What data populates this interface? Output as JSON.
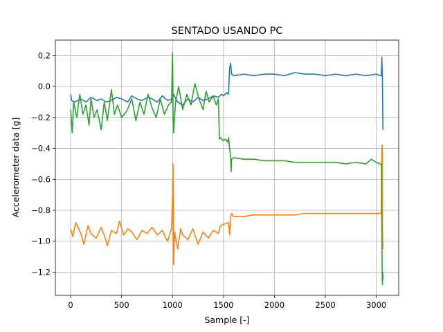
{
  "chart_data": {
    "type": "line",
    "title": "SENTADO USANDO PC",
    "xlabel": "Sample [-]",
    "ylabel": "Accelerometer data [g]",
    "xlim": [
      -150,
      3220
    ],
    "ylim": [
      -1.35,
      0.3
    ],
    "xticks": [
      0,
      500,
      1000,
      1500,
      2000,
      2500,
      3000
    ],
    "xtick_labels": [
      "0",
      "500",
      "1000",
      "1500",
      "2000",
      "2500",
      "3000"
    ],
    "yticks": [
      -1.2,
      -1.0,
      -0.8,
      -0.6,
      -0.4,
      -0.2,
      0.0,
      0.2
    ],
    "ytick_labels": [
      "−1.2",
      "−1.0",
      "−0.8",
      "−0.6",
      "−0.4",
      "−0.2",
      "0.0",
      "0.2"
    ],
    "grid": true,
    "series": [
      {
        "color": "#1f77b4",
        "x": [
          0,
          10,
          40,
          100,
          150,
          200,
          260,
          300,
          350,
          400,
          450,
          500,
          560,
          600,
          650,
          700,
          760,
          800,
          850,
          900,
          950,
          1000,
          1010,
          1050,
          1100,
          1150,
          1200,
          1250,
          1300,
          1350,
          1400,
          1450,
          1480,
          1500,
          1530,
          1550,
          1560,
          1570,
          1580,
          1600,
          1700,
          1800,
          1900,
          2000,
          2100,
          2200,
          2300,
          2400,
          2500,
          2600,
          2700,
          2800,
          2900,
          3000,
          3040,
          3050,
          3055,
          3060,
          3063,
          3065
        ],
        "y": [
          -0.05,
          -0.09,
          -0.1,
          -0.08,
          -0.1,
          -0.07,
          -0.09,
          -0.08,
          -0.1,
          -0.09,
          -0.07,
          -0.08,
          -0.1,
          -0.06,
          -0.08,
          -0.09,
          -0.07,
          -0.08,
          -0.1,
          -0.06,
          -0.09,
          -0.08,
          -0.05,
          -0.1,
          -0.12,
          -0.08,
          -0.1,
          -0.07,
          -0.09,
          -0.08,
          -0.06,
          -0.07,
          -0.05,
          -0.06,
          -0.04,
          -0.05,
          0.12,
          0.15,
          0.08,
          0.07,
          0.08,
          0.07,
          0.08,
          0.08,
          0.07,
          0.09,
          0.08,
          0.08,
          0.07,
          0.08,
          0.07,
          0.08,
          0.07,
          0.08,
          0.07,
          0.07,
          0.19,
          0.05,
          -0.15,
          -0.28
        ]
      },
      {
        "color": "#ff7f0e",
        "x": [
          0,
          20,
          50,
          100,
          130,
          170,
          200,
          250,
          300,
          330,
          360,
          400,
          450,
          480,
          520,
          560,
          600,
          650,
          700,
          750,
          800,
          850,
          900,
          950,
          990,
          1000,
          1005,
          1010,
          1020,
          1050,
          1080,
          1100,
          1150,
          1200,
          1250,
          1300,
          1350,
          1400,
          1450,
          1470,
          1500,
          1550,
          1560,
          1570,
          1580,
          1600,
          1700,
          1800,
          1900,
          2000,
          2100,
          2200,
          2300,
          2400,
          2500,
          2600,
          2700,
          2800,
          2900,
          3000,
          3040,
          3050,
          3055,
          3058,
          3060,
          3062,
          3065
        ],
        "y": [
          -0.92,
          -0.97,
          -0.88,
          -0.95,
          -1.02,
          -0.9,
          -0.95,
          -0.98,
          -0.91,
          -0.96,
          -1.03,
          -0.93,
          -0.95,
          -0.87,
          -0.96,
          -0.92,
          -0.94,
          -0.99,
          -0.93,
          -0.95,
          -0.91,
          -0.96,
          -0.93,
          -1.0,
          -0.92,
          -0.7,
          -0.5,
          -1.15,
          -0.94,
          -1.05,
          -0.92,
          -0.96,
          -0.99,
          -0.92,
          -1.02,
          -0.94,
          -0.98,
          -0.93,
          -0.95,
          -0.9,
          -0.89,
          -0.88,
          -0.96,
          -0.84,
          -0.82,
          -0.84,
          -0.84,
          -0.83,
          -0.83,
          -0.83,
          -0.83,
          -0.83,
          -0.82,
          -0.82,
          -0.82,
          -0.82,
          -0.82,
          -0.82,
          -0.82,
          -0.82,
          -0.82,
          -0.81,
          -0.4,
          -0.38,
          -0.8,
          -0.95,
          -1.05
        ]
      },
      {
        "color": "#2ca02c",
        "x": [
          0,
          15,
          30,
          60,
          90,
          120,
          150,
          180,
          200,
          230,
          260,
          300,
          330,
          360,
          400,
          430,
          460,
          500,
          550,
          600,
          640,
          680,
          720,
          760,
          800,
          840,
          880,
          920,
          960,
          990,
          1000,
          1005,
          1010,
          1030,
          1060,
          1100,
          1140,
          1180,
          1220,
          1260,
          1300,
          1330,
          1360,
          1400,
          1430,
          1450,
          1460,
          1470,
          1500,
          1520,
          1540,
          1550,
          1560,
          1570,
          1575,
          1580,
          1600,
          1700,
          1800,
          1900,
          2000,
          2100,
          2200,
          2300,
          2400,
          2500,
          2600,
          2700,
          2800,
          2900,
          2950,
          3000,
          3040,
          3050,
          3055,
          3058,
          3060,
          3063,
          3065
        ],
        "y": [
          -0.15,
          -0.3,
          -0.1,
          -0.2,
          -0.05,
          -0.18,
          -0.12,
          -0.25,
          -0.08,
          -0.2,
          -0.15,
          -0.28,
          -0.1,
          -0.22,
          -0.02,
          -0.18,
          -0.12,
          -0.2,
          -0.16,
          -0.08,
          -0.22,
          -0.1,
          -0.18,
          -0.05,
          -0.14,
          -0.2,
          -0.08,
          -0.18,
          -0.12,
          -0.1,
          0.22,
          -0.15,
          -0.3,
          -0.1,
          0.0,
          -0.15,
          -0.05,
          -0.12,
          0.02,
          -0.08,
          -0.15,
          -0.03,
          -0.1,
          -0.06,
          -0.12,
          -0.08,
          -0.34,
          -0.33,
          -0.35,
          -0.34,
          -0.36,
          -0.33,
          -0.4,
          -0.46,
          -0.55,
          -0.47,
          -0.46,
          -0.47,
          -0.47,
          -0.48,
          -0.48,
          -0.48,
          -0.49,
          -0.49,
          -0.49,
          -0.49,
          -0.49,
          -0.5,
          -0.49,
          -0.5,
          -0.47,
          -0.49,
          -0.5,
          -0.5,
          -0.93,
          -1.25,
          -1.28,
          -1.2,
          -1.25
        ]
      }
    ]
  }
}
